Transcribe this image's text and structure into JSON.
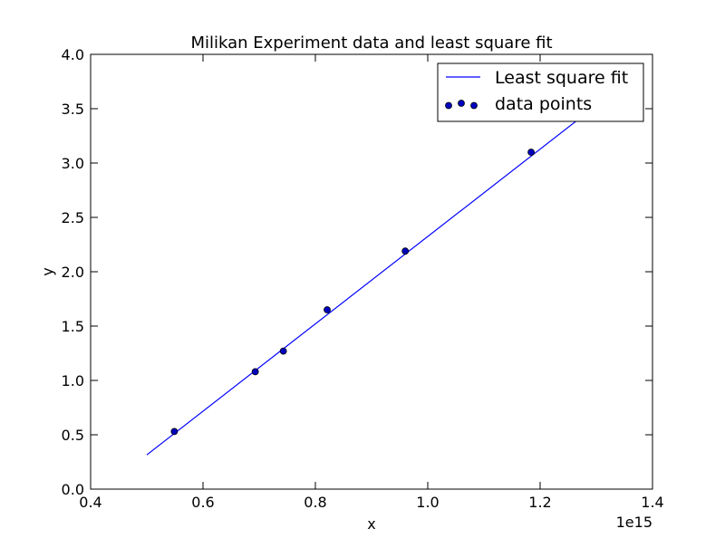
{
  "chart_data": {
    "type": "scatter",
    "title": "Milikan Experiment data and least square fit",
    "xlabel": "x",
    "ylabel": "y",
    "x_offset_label": "1e15",
    "xlim": [
      0.4,
      1.4
    ],
    "ylim": [
      0.0,
      4.0
    ],
    "x_ticks": [
      "0.4",
      "0.6",
      "0.8",
      "1.0",
      "1.2",
      "1.4"
    ],
    "y_ticks": [
      "0.0",
      "0.5",
      "1.0",
      "1.5",
      "2.0",
      "2.5",
      "3.0",
      "3.5",
      "4.0"
    ],
    "grid": false,
    "legend_position": "top-right",
    "series": [
      {
        "name": "Least square fit",
        "kind": "line",
        "color": "#0000ff",
        "x": [
          0.5,
          1.3
        ],
        "y": [
          0.315,
          3.53
        ]
      },
      {
        "name": "data points",
        "kind": "scatter",
        "color": "#0000bf",
        "x": [
          0.549,
          0.693,
          0.743,
          0.821,
          0.96,
          1.184
        ],
        "y": [
          0.53,
          1.08,
          1.27,
          1.65,
          2.19,
          3.1
        ]
      }
    ]
  }
}
